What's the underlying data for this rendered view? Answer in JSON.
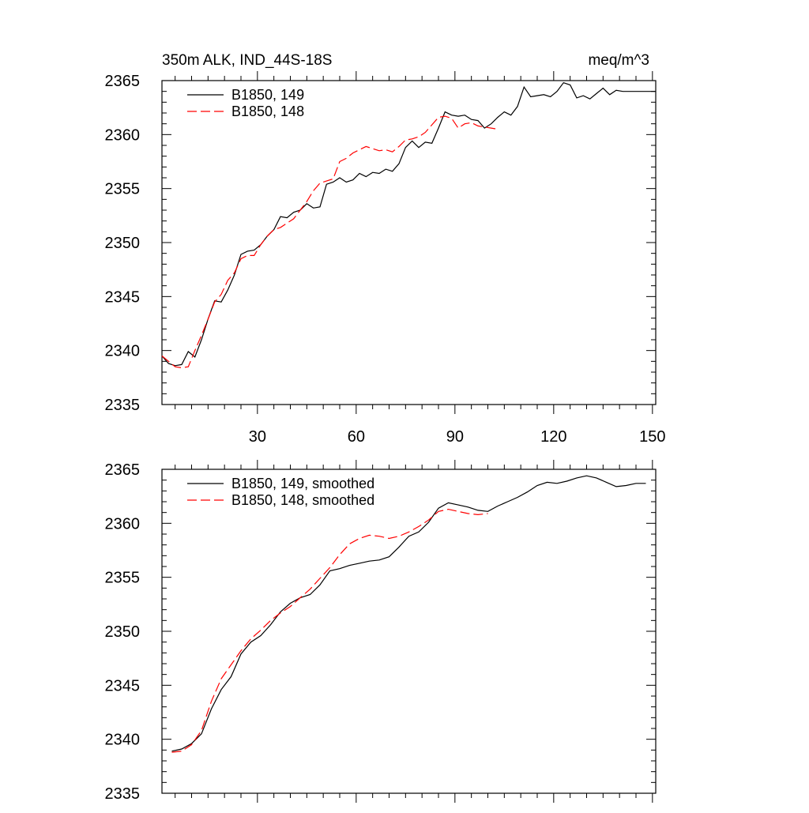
{
  "colors": {
    "series_149": "#000000",
    "series_148": "#ff0000",
    "axis": "#000000",
    "background": "#ffffff"
  },
  "chart_data": [
    {
      "type": "line",
      "title_left": "350m ALK, IND_44S-18S",
      "title_right": "meq/m^3",
      "xlabel": "",
      "ylabel": "",
      "xlim": [
        1,
        151
      ],
      "ylim": [
        2335,
        2365
      ],
      "xticks": [
        30,
        60,
        90,
        120,
        150
      ],
      "xtick_labels": [
        "30",
        "60",
        "90",
        "120",
        "150"
      ],
      "yticks": [
        2335,
        2340,
        2345,
        2350,
        2355,
        2360,
        2365
      ],
      "ytick_labels": [
        "2335",
        "2340",
        "2345",
        "2350",
        "2355",
        "2360",
        "2365"
      ],
      "grid": false,
      "legend_position": "top-left",
      "series": [
        {
          "name": "B1850, 149",
          "style": "solid",
          "x": [
            1,
            3,
            5,
            7,
            9,
            11,
            13,
            15,
            17,
            19,
            21,
            23,
            25,
            27,
            29,
            31,
            33,
            35,
            37,
            39,
            41,
            43,
            45,
            47,
            49,
            51,
            53,
            55,
            57,
            59,
            61,
            63,
            65,
            67,
            69,
            71,
            73,
            75,
            77,
            79,
            81,
            83,
            85,
            87,
            89,
            91,
            93,
            95,
            97,
            99,
            101,
            103,
            105,
            107,
            109,
            111,
            113,
            115,
            117,
            119,
            121,
            123,
            125,
            127,
            129,
            131,
            133,
            135,
            137,
            139,
            141,
            143,
            145,
            147,
            149,
            151
          ],
          "y": [
            2339.5,
            2338.8,
            2338.6,
            2338.7,
            2339.9,
            2339.4,
            2341.0,
            2342.9,
            2344.6,
            2344.5,
            2345.6,
            2347.0,
            2348.9,
            2349.2,
            2349.3,
            2349.8,
            2350.6,
            2351.2,
            2352.4,
            2352.3,
            2352.8,
            2353.0,
            2353.6,
            2353.2,
            2353.3,
            2355.4,
            2355.6,
            2356.0,
            2355.6,
            2355.8,
            2356.4,
            2356.1,
            2356.5,
            2356.4,
            2356.8,
            2356.6,
            2357.3,
            2358.8,
            2359.4,
            2358.8,
            2359.3,
            2359.2,
            2360.6,
            2362.1,
            2361.8,
            2361.7,
            2361.8,
            2361.4,
            2361.3,
            2360.6,
            2361.0,
            2361.6,
            2362.1,
            2361.8,
            2362.6,
            2364.4,
            2363.5,
            2363.6,
            2363.7,
            2363.5,
            2364.0,
            2364.8,
            2364.6,
            2363.4,
            2363.6,
            2363.3,
            2363.8,
            2364.3,
            2363.7,
            2364.1,
            2364.0,
            2364.0,
            2364.0,
            2364.0,
            2364.0,
            2364.0
          ]
        },
        {
          "name": "B1850, 148",
          "style": "dashed",
          "x": [
            1,
            3,
            5,
            7,
            9,
            11,
            13,
            15,
            17,
            19,
            21,
            23,
            25,
            27,
            29,
            31,
            33,
            35,
            37,
            39,
            41,
            43,
            45,
            47,
            49,
            51,
            53,
            55,
            57,
            59,
            61,
            63,
            65,
            67,
            69,
            71,
            73,
            75,
            77,
            79,
            81,
            83,
            85,
            87,
            89,
            91,
            93,
            95,
            97,
            99,
            101,
            103
          ],
          "y": [
            2339.5,
            2339.0,
            2338.5,
            2338.4,
            2338.5,
            2340.0,
            2341.4,
            2342.9,
            2344.5,
            2345.2,
            2346.5,
            2347.2,
            2348.5,
            2348.8,
            2348.8,
            2349.8,
            2350.6,
            2351.2,
            2351.4,
            2351.8,
            2352.2,
            2353.0,
            2353.8,
            2354.8,
            2355.5,
            2355.7,
            2355.9,
            2357.5,
            2357.8,
            2358.3,
            2358.6,
            2358.9,
            2358.7,
            2358.5,
            2358.6,
            2358.4,
            2358.9,
            2359.5,
            2359.6,
            2359.8,
            2360.2,
            2360.9,
            2361.6,
            2361.7,
            2361.5,
            2360.6,
            2361.0,
            2361.1,
            2360.8,
            2360.7,
            2360.6,
            2360.5
          ]
        }
      ]
    },
    {
      "type": "line",
      "title_left": "",
      "title_right": "",
      "xlabel": "",
      "ylabel": "",
      "xlim": [
        1,
        151
      ],
      "ylim": [
        2335,
        2365
      ],
      "xticks": [
        30,
        60,
        90,
        120,
        150
      ],
      "xtick_labels": [],
      "yticks": [
        2335,
        2340,
        2345,
        2350,
        2355,
        2360,
        2365
      ],
      "ytick_labels": [
        "2335",
        "2340",
        "2345",
        "2350",
        "2355",
        "2360",
        "2365"
      ],
      "grid": false,
      "legend_position": "top-left",
      "series": [
        {
          "name": "B1850, 149, smoothed",
          "style": "solid",
          "x": [
            4,
            7,
            10,
            13,
            16,
            19,
            22,
            25,
            28,
            31,
            34,
            37,
            40,
            43,
            46,
            49,
            52,
            55,
            58,
            61,
            64,
            67,
            70,
            73,
            76,
            79,
            82,
            85,
            88,
            91,
            94,
            97,
            100,
            103,
            106,
            109,
            112,
            115,
            118,
            121,
            124,
            127,
            130,
            133,
            136,
            139,
            142,
            145,
            148
          ],
          "y": [
            2338.9,
            2339.1,
            2339.6,
            2340.5,
            2342.8,
            2344.6,
            2345.8,
            2347.9,
            2349.0,
            2349.6,
            2350.6,
            2351.8,
            2352.6,
            2353.1,
            2353.4,
            2354.3,
            2355.6,
            2355.8,
            2356.1,
            2356.3,
            2356.5,
            2356.6,
            2356.9,
            2357.8,
            2358.8,
            2359.2,
            2360.1,
            2361.4,
            2361.9,
            2361.7,
            2361.5,
            2361.2,
            2361.1,
            2361.6,
            2362.0,
            2362.4,
            2362.9,
            2363.5,
            2363.8,
            2363.7,
            2363.9,
            2364.2,
            2364.4,
            2364.2,
            2363.8,
            2363.4,
            2363.5,
            2363.7,
            2363.7
          ]
        },
        {
          "name": "B1850, 148, smoothed",
          "style": "dashed",
          "x": [
            4,
            7,
            10,
            13,
            16,
            19,
            22,
            25,
            28,
            31,
            34,
            37,
            40,
            43,
            46,
            49,
            52,
            55,
            58,
            61,
            64,
            67,
            70,
            73,
            76,
            79,
            82,
            85,
            88,
            91,
            94,
            97,
            100
          ],
          "y": [
            2338.8,
            2338.9,
            2339.5,
            2340.8,
            2343.5,
            2345.6,
            2346.9,
            2348.2,
            2349.3,
            2350.1,
            2351.0,
            2351.7,
            2352.3,
            2353.1,
            2353.9,
            2354.9,
            2355.9,
            2357.1,
            2358.1,
            2358.6,
            2358.9,
            2358.8,
            2358.6,
            2358.8,
            2359.2,
            2359.7,
            2360.3,
            2361.1,
            2361.3,
            2361.1,
            2360.9,
            2360.8,
            2360.9
          ]
        }
      ]
    }
  ]
}
